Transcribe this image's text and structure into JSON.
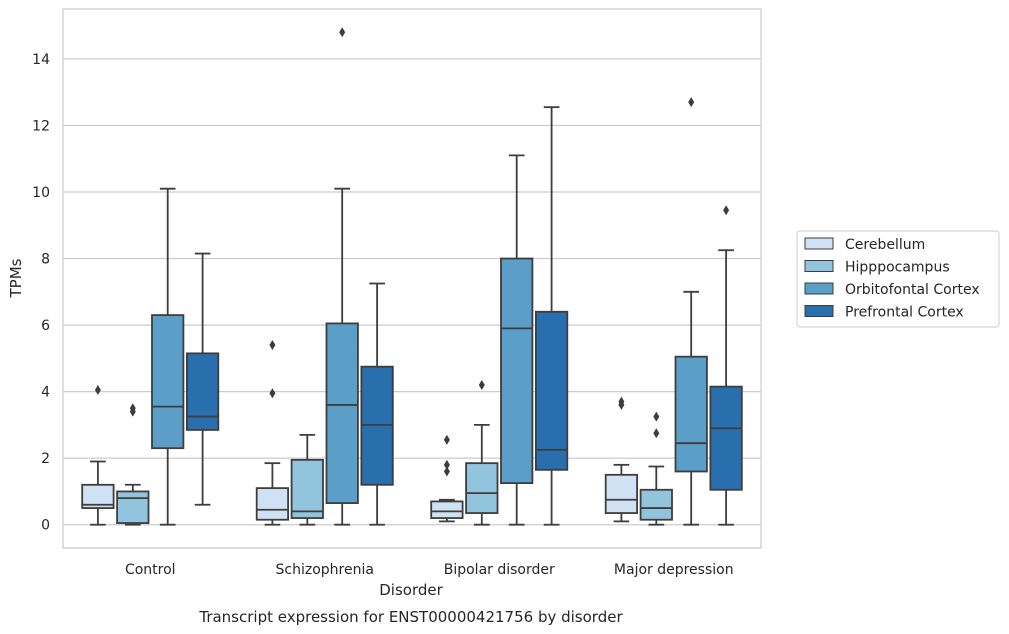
{
  "chart_data": {
    "type": "box",
    "caption": "Transcript expression for ENST00000421756 by disorder",
    "xlabel": "Disorder",
    "ylabel": "TPMs",
    "ylim": [
      -0.7,
      15.5
    ],
    "yticks": [
      0,
      2,
      4,
      6,
      8,
      10,
      12,
      14
    ],
    "grid": "horizontal",
    "legend_position": "right",
    "categories": [
      "Control",
      "Schizophrenia",
      "Bipolar disorder",
      "Major depression"
    ],
    "series": [
      {
        "name": "Cerebellum",
        "color": "#cfe1f2",
        "boxes": [
          {
            "whislo": 0.0,
            "q1": 0.5,
            "med": 0.6,
            "q3": 1.2,
            "whishi": 1.9,
            "fliers": [
              4.05
            ]
          },
          {
            "whislo": 0.0,
            "q1": 0.15,
            "med": 0.45,
            "q3": 1.1,
            "whishi": 1.85,
            "fliers": [
              3.95,
              5.4
            ]
          },
          {
            "whislo": 0.1,
            "q1": 0.2,
            "med": 0.4,
            "q3": 0.7,
            "whishi": 0.75,
            "fliers": [
              1.6,
              1.8,
              2.55
            ]
          },
          {
            "whislo": 0.1,
            "q1": 0.35,
            "med": 0.75,
            "q3": 1.5,
            "whishi": 1.8,
            "fliers": [
              3.6,
              3.7
            ]
          }
        ]
      },
      {
        "name": "Hipppocampus",
        "color": "#93c4de",
        "boxes": [
          {
            "whislo": 0.0,
            "q1": 0.05,
            "med": 0.8,
            "q3": 1.0,
            "whishi": 1.2,
            "fliers": [
              3.4,
              3.5
            ]
          },
          {
            "whislo": 0.0,
            "q1": 0.2,
            "med": 0.4,
            "q3": 1.95,
            "whishi": 2.7,
            "fliers": []
          },
          {
            "whislo": 0.0,
            "q1": 0.35,
            "med": 0.95,
            "q3": 1.85,
            "whishi": 3.0,
            "fliers": [
              4.2
            ]
          },
          {
            "whislo": 0.0,
            "q1": 0.15,
            "med": 0.5,
            "q3": 1.05,
            "whishi": 1.75,
            "fliers": [
              2.75,
              3.25
            ]
          }
        ]
      },
      {
        "name": "Orbitofontal Cortex",
        "color": "#5b9fc9",
        "boxes": [
          {
            "whislo": 0.0,
            "q1": 2.3,
            "med": 3.55,
            "q3": 6.3,
            "whishi": 10.1,
            "fliers": []
          },
          {
            "whislo": 0.0,
            "q1": 0.65,
            "med": 3.6,
            "q3": 6.05,
            "whishi": 10.1,
            "fliers": [
              14.8
            ]
          },
          {
            "whislo": 0.0,
            "q1": 1.25,
            "med": 5.9,
            "q3": 8.0,
            "whishi": 11.1,
            "fliers": []
          },
          {
            "whislo": 0.0,
            "q1": 1.6,
            "med": 2.45,
            "q3": 5.05,
            "whishi": 7.0,
            "fliers": [
              12.7
            ]
          }
        ]
      },
      {
        "name": "Prefrontal Cortex",
        "color": "#2a6fad",
        "boxes": [
          {
            "whislo": 0.6,
            "q1": 2.85,
            "med": 3.25,
            "q3": 5.15,
            "whishi": 8.15,
            "fliers": []
          },
          {
            "whislo": 0.0,
            "q1": 1.2,
            "med": 3.0,
            "q3": 4.75,
            "whishi": 7.25,
            "fliers": []
          },
          {
            "whislo": 0.0,
            "q1": 1.65,
            "med": 2.25,
            "q3": 6.4,
            "whishi": 12.55,
            "fliers": []
          },
          {
            "whislo": 0.0,
            "q1": 1.05,
            "med": 2.9,
            "q3": 4.15,
            "whishi": 8.25,
            "fliers": [
              9.45
            ]
          }
        ]
      }
    ]
  }
}
